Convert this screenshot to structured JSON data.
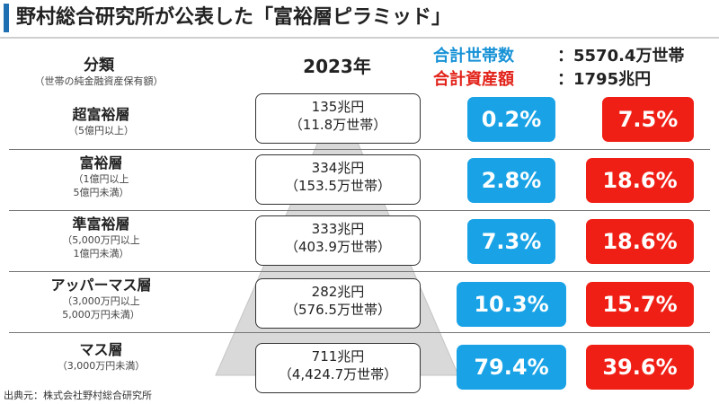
{
  "title": "野村総合研究所が公表した「富裕層ピラミッド」",
  "header": {
    "category_label": "分類",
    "category_sub": "（世帯の純金融資産保有額）",
    "year": "2023年"
  },
  "totals": {
    "households_label": "合計世帯数",
    "households_value": "：5570.4万世帯",
    "assets_label": "合計資産額",
    "assets_value": "：1795兆円"
  },
  "rows": [
    {
      "name": "超富裕層",
      "range1": "（5億円以上）",
      "range2": "",
      "amount": "135兆円",
      "households": "（11.8万世帯）",
      "household_share": "0.2%",
      "asset_share": "7.5%"
    },
    {
      "name": "富裕層",
      "range1": "（1億円以上",
      "range2": "5億円未満）",
      "amount": "334兆円",
      "households": "（153.5万世帯）",
      "household_share": "2.8%",
      "asset_share": "18.6%"
    },
    {
      "name": "準富裕層",
      "range1": "（5,000万円以上",
      "range2": "1億円未満）",
      "amount": "333兆円",
      "households": "（403.9万世帯）",
      "household_share": "7.3%",
      "asset_share": "18.6%"
    },
    {
      "name": "アッパーマス層",
      "range1": "（3,000万円以上",
      "range2": "5,000万円未満）",
      "amount": "282兆円",
      "households": "（576.5万世帯）",
      "household_share": "10.3%",
      "asset_share": "15.7%"
    },
    {
      "name": "マス層",
      "range1": "（3,000万円未満）",
      "range2": "",
      "amount": "711兆円",
      "households": "（4,424.7万世帯）",
      "household_share": "79.4%",
      "asset_share": "39.6%"
    }
  ],
  "source": "出典元：株式会社野村総合研究所",
  "colors": {
    "blue": "#19a3e6",
    "red": "#ef1f15",
    "accent": "#1f6fb3",
    "pyramid": "#d9d9d9"
  }
}
